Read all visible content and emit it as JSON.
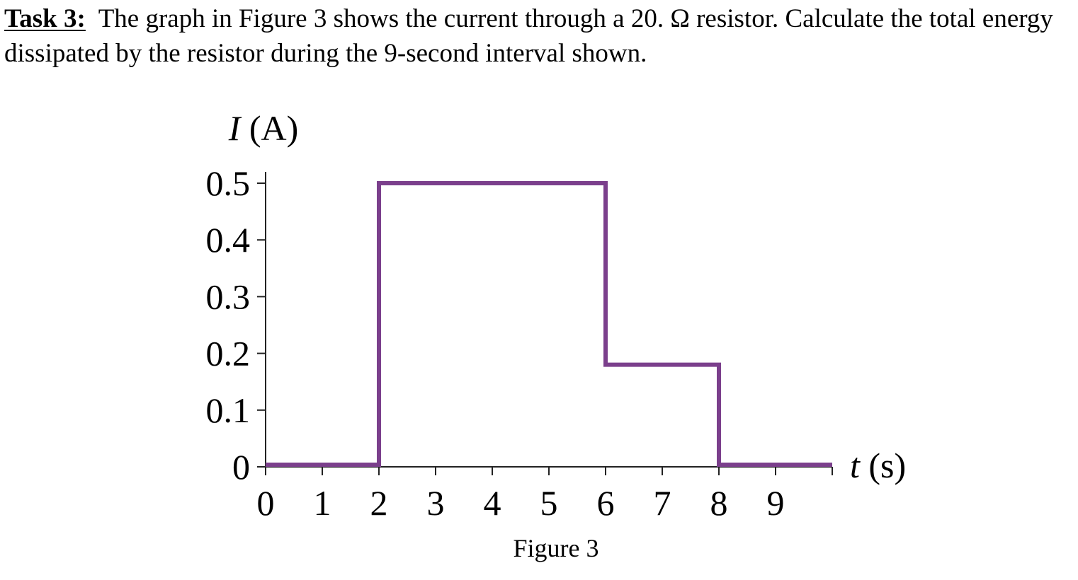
{
  "task": {
    "label": "Task 3:",
    "text": "The graph in Figure 3 shows the current through a 20. Ω resistor. Calculate the total energy dissipated by the resistor during the 9-second interval shown."
  },
  "figure_caption": "Figure 3",
  "chart_data": {
    "type": "line",
    "title": "",
    "xlabel_var": "t",
    "xlabel_unit": "(s)",
    "ylabel_var": "I",
    "ylabel_unit": "(A)",
    "xlim": [
      0,
      10
    ],
    "ylim": [
      0,
      0.5
    ],
    "x_ticks": [
      0,
      1,
      2,
      3,
      4,
      5,
      6,
      7,
      8,
      9,
      10
    ],
    "x_tick_labels": [
      "0",
      "1",
      "2",
      "3",
      "4",
      "5",
      "6",
      "7",
      "8",
      "9"
    ],
    "y_ticks": [
      0,
      0.1,
      0.2,
      0.3,
      0.4,
      0.5
    ],
    "y_tick_labels": [
      "0",
      "0.1",
      "0.2",
      "0.3",
      "0.4",
      "0.5"
    ],
    "grid": false,
    "line_color": "#7b3f8c",
    "series": [
      {
        "step": true,
        "points": [
          [
            0,
            0
          ],
          [
            2,
            0
          ],
          [
            2,
            0.5
          ],
          [
            6,
            0.5
          ],
          [
            6,
            0.18
          ],
          [
            8,
            0.18
          ],
          [
            8,
            0
          ],
          [
            10,
            0
          ]
        ]
      }
    ]
  }
}
